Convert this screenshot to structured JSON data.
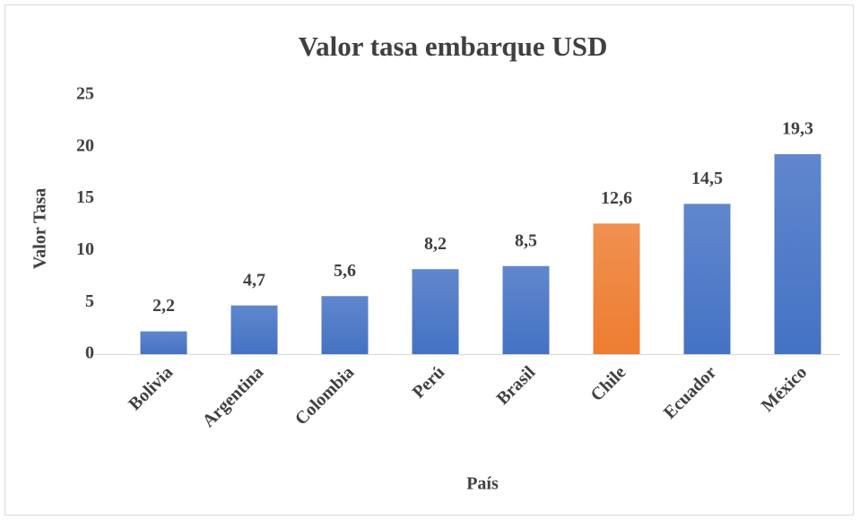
{
  "chart_data": {
    "type": "bar",
    "title": "Valor tasa embarque USD",
    "x_label": "País",
    "y_label": "Valor Tasa",
    "categories": [
      "Bolivia",
      "Argentina",
      "Colombia",
      "Perú",
      "Brasil",
      "Chile",
      "Ecuador",
      "México"
    ],
    "values": [
      2.2,
      4.7,
      5.6,
      8.2,
      8.5,
      12.6,
      14.5,
      19.3
    ],
    "value_labels": [
      "2,2",
      "4,7",
      "5,6",
      "8,2",
      "8,5",
      "12,6",
      "14,5",
      "19,3"
    ],
    "colors": [
      "#4472c4",
      "#4472c4",
      "#4472c4",
      "#4472c4",
      "#4472c4",
      "#ed7d31",
      "#4472c4",
      "#4472c4"
    ],
    "ylim": [
      0,
      25
    ],
    "yticks": [
      0,
      5,
      10,
      15,
      20,
      25
    ],
    "grid": false
  }
}
